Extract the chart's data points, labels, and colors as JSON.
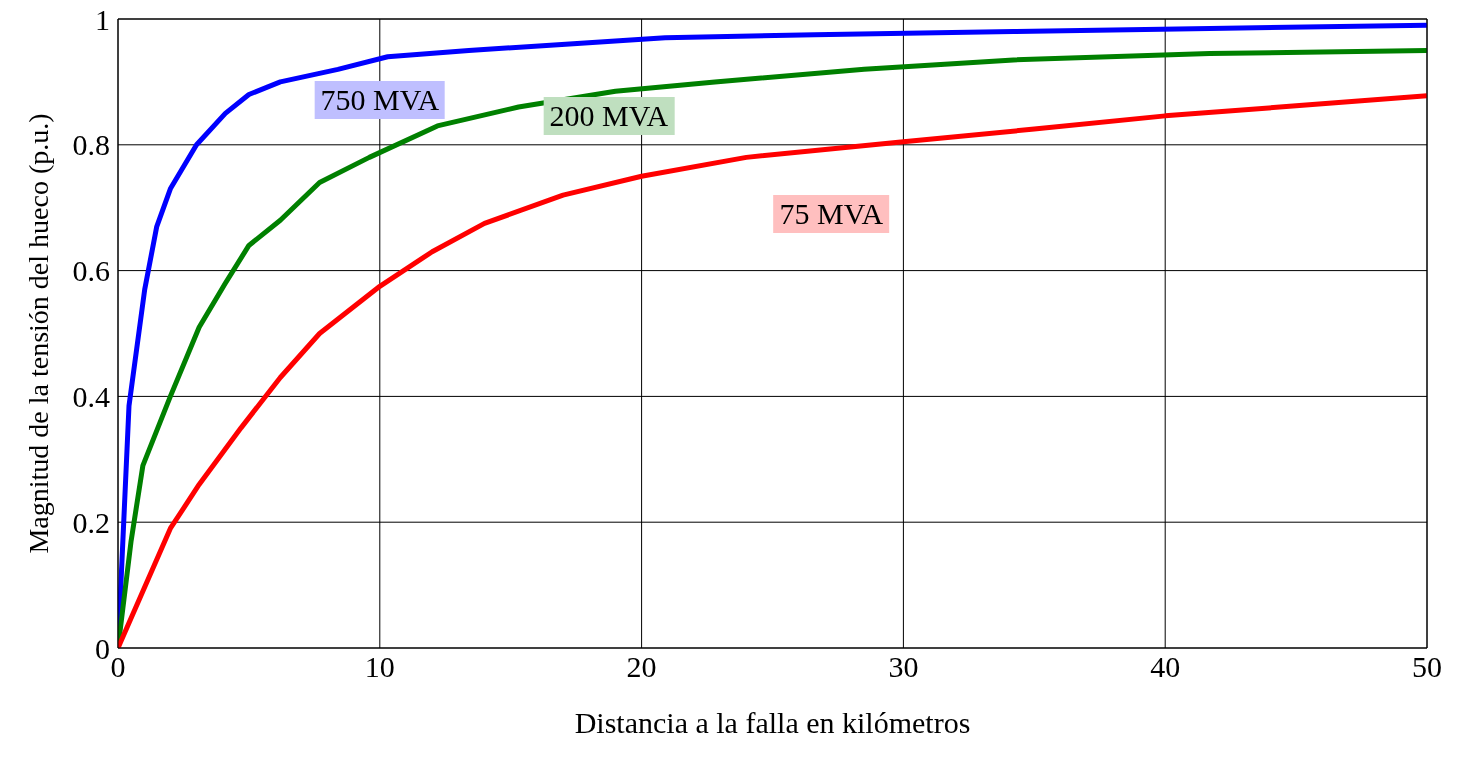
{
  "chart_data": {
    "type": "line",
    "xlabel": "Distancia a la falla en kilómetros",
    "ylabel": "Magnitud de la  tensión del hueco (p.u.)",
    "xlim": [
      0,
      50
    ],
    "xticks": [
      0,
      10,
      20,
      30,
      40,
      50
    ],
    "ylim": [
      0,
      1
    ],
    "yticks": [
      0,
      0.2,
      0.4,
      0.6,
      0.8,
      1
    ],
    "grid": true,
    "marker": "none",
    "line_style": "solid",
    "series": [
      {
        "name": "750 MVA",
        "color": "#0000ff",
        "x": [
          0,
          0.42,
          1.02,
          1.48,
          2.0,
          3.0,
          4.1,
          5.0,
          6.2,
          8.4,
          10.3,
          13.4,
          17.1,
          20.9,
          26.6,
          34.2,
          41.7,
          50
        ],
        "values": [
          0,
          0.385,
          0.57,
          0.67,
          0.73,
          0.8,
          0.85,
          0.88,
          0.9,
          0.92,
          0.94,
          0.95,
          0.96,
          0.97,
          0.975,
          0.98,
          0.985,
          0.99
        ]
      },
      {
        "name": "200 MVA",
        "color": "#008000",
        "x": [
          0,
          0.5,
          0.95,
          2.0,
          3.1,
          4.1,
          5.0,
          6.2,
          7.7,
          9.6,
          12.2,
          15.3,
          19.0,
          22.8,
          28.5,
          34.2,
          41.7,
          50
        ],
        "values": [
          0,
          0.17,
          0.29,
          0.4,
          0.51,
          0.58,
          0.64,
          0.68,
          0.74,
          0.78,
          0.83,
          0.86,
          0.885,
          0.9,
          0.92,
          0.935,
          0.945,
          0.95
        ]
      },
      {
        "name": "75 MVA",
        "color": "#ff0000",
        "x": [
          0,
          2.0,
          3.1,
          4.7,
          6.2,
          7.7,
          10,
          12,
          14,
          17,
          20,
          24,
          30,
          35,
          40,
          45,
          50
        ],
        "values": [
          0,
          0.19,
          0.26,
          0.35,
          0.43,
          0.5,
          0.575,
          0.63,
          0.675,
          0.72,
          0.75,
          0.78,
          0.805,
          0.825,
          0.846,
          0.862,
          0.878
        ]
      }
    ]
  }
}
